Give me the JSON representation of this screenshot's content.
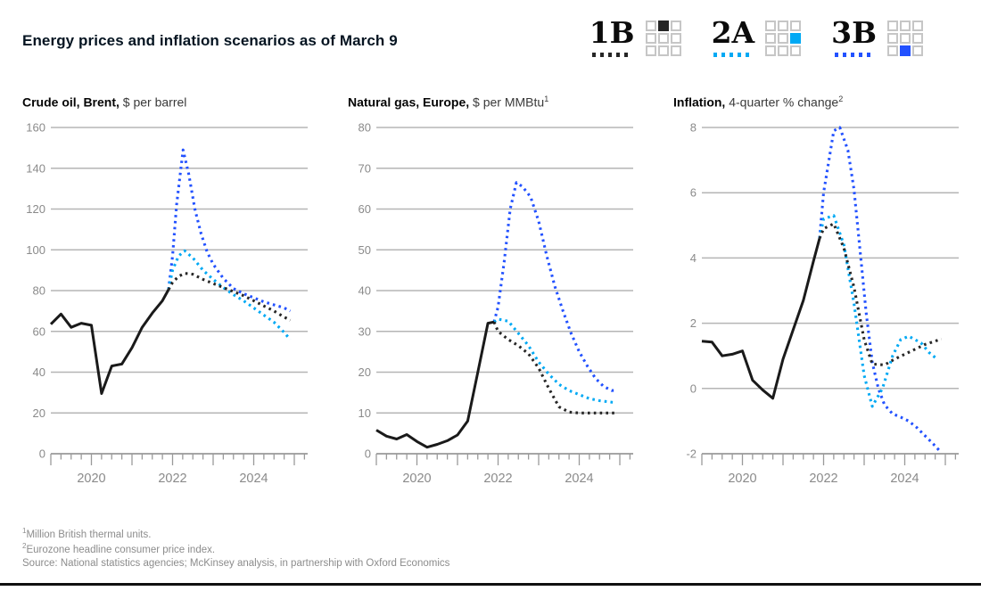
{
  "title": "Energy prices and inflation scenarios as of March 9",
  "legend": {
    "items": [
      {
        "label": "1B",
        "color": "#262626",
        "grid_cell_index": 1,
        "swatch": "dotted-line"
      },
      {
        "label": "2A",
        "color": "#00a9f4",
        "grid_cell_index": 5,
        "swatch": "dotted-line"
      },
      {
        "label": "3B",
        "color": "#2251ff",
        "grid_cell_index": 7,
        "swatch": "dotted-line"
      }
    ],
    "grid_border_color": "#c6c6c6"
  },
  "footnotes": [
    {
      "sup": "1",
      "text": "Million British thermal units."
    },
    {
      "sup": "2",
      "text": "Eurozone headline consumer price index."
    }
  ],
  "source": "Source: National statistics agencies; McKinsey analysis, in partnership with Oxford Economics",
  "chart_data": [
    {
      "type": "line",
      "title_bold": "Crude oil, Brent,",
      "title_rest": " $ per barrel",
      "title_sup": "",
      "ylim": [
        0,
        160
      ],
      "yticks": [
        160,
        140,
        120,
        100,
        80,
        60,
        40,
        20,
        0
      ],
      "x_range": [
        2019,
        2025
      ],
      "grid": true,
      "legend_position": "top-right-of-page",
      "x_year_labels": [
        {
          "label": "2020",
          "year": 2020
        },
        {
          "label": "2022",
          "year": 2022
        },
        {
          "label": "2024",
          "year": 2024
        }
      ],
      "series": [
        {
          "name": "3B",
          "style": "dotted",
          "color": "#2251ff",
          "x": [
            2021.9,
            2022.0,
            2022.1,
            2022.26,
            2022.4,
            2022.55,
            2022.7,
            2022.85,
            2023.0,
            2023.25,
            2023.5,
            2023.75,
            2024.0,
            2024.25,
            2024.5,
            2024.75,
            2024.9
          ],
          "y": [
            80.5,
            97,
            122,
            149,
            137,
            120,
            108,
            99,
            93,
            86,
            81,
            78.5,
            76.5,
            74.5,
            73,
            71.5,
            70
          ]
        },
        {
          "name": "2A",
          "style": "dotted",
          "color": "#00a9f4",
          "x": [
            2021.9,
            2022.0,
            2022.15,
            2022.3,
            2022.5,
            2022.75,
            2023.0,
            2023.25,
            2023.5,
            2023.75,
            2024.0,
            2024.25,
            2024.5,
            2024.75,
            2024.9
          ],
          "y": [
            80.5,
            90,
            97,
            99.5,
            96,
            90,
            85.5,
            81.5,
            78,
            75,
            71.5,
            68,
            64.5,
            59.5,
            56
          ]
        },
        {
          "name": "1B",
          "style": "dotted",
          "color": "#262626",
          "x": [
            2021.9,
            2022.0,
            2022.15,
            2022.3,
            2022.5,
            2022.75,
            2023.0,
            2023.25,
            2023.5,
            2023.75,
            2024.0,
            2024.25,
            2024.5,
            2024.75,
            2024.9
          ],
          "y": [
            80.5,
            84,
            87,
            88.5,
            88,
            85.5,
            83.5,
            81.5,
            79.5,
            77.5,
            75,
            72.5,
            70,
            67,
            65.5
          ]
        },
        {
          "name": "historical",
          "style": "solid",
          "color": "#1a1a1a",
          "x": [
            2019.0,
            2019.25,
            2019.5,
            2019.75,
            2020.0,
            2020.25,
            2020.5,
            2020.75,
            2021.0,
            2021.25,
            2021.5,
            2021.75,
            2021.9
          ],
          "y": [
            63.5,
            68.5,
            62,
            64,
            63,
            29.5,
            43,
            44,
            52,
            62,
            69,
            75,
            80.5
          ]
        }
      ]
    },
    {
      "type": "line",
      "title_bold": "Natural gas, Europe,",
      "title_rest": " $ per MMBtu",
      "title_sup": "1",
      "ylim": [
        0,
        80
      ],
      "yticks": [
        80,
        70,
        60,
        50,
        40,
        30,
        20,
        10,
        0
      ],
      "x_range": [
        2019,
        2025
      ],
      "grid": true,
      "x_year_labels": [
        {
          "label": "2020",
          "year": 2020
        },
        {
          "label": "2022",
          "year": 2022
        },
        {
          "label": "2024",
          "year": 2024
        }
      ],
      "series": [
        {
          "name": "3B",
          "style": "dotted",
          "color": "#2251ff",
          "x": [
            2021.9,
            2022.0,
            2022.15,
            2022.3,
            2022.45,
            2022.6,
            2022.8,
            2023.0,
            2023.2,
            2023.4,
            2023.6,
            2023.8,
            2024.0,
            2024.2,
            2024.4,
            2024.6,
            2024.8,
            2024.9
          ],
          "y": [
            32.3,
            36,
            47,
            60,
            66.5,
            65.5,
            63,
            57,
            48.5,
            41,
            35,
            29.5,
            25,
            21.5,
            18.5,
            16.5,
            15.5,
            15.5
          ]
        },
        {
          "name": "2A",
          "style": "dotted",
          "color": "#00a9f4",
          "x": [
            2021.9,
            2022.0,
            2022.25,
            2022.5,
            2022.75,
            2023.0,
            2023.25,
            2023.5,
            2023.75,
            2024.0,
            2024.25,
            2024.5,
            2024.75,
            2024.9
          ],
          "y": [
            32.3,
            33,
            32.5,
            29.5,
            26.5,
            22.5,
            19.5,
            17,
            15.5,
            14.5,
            13.5,
            13,
            12.7,
            12.5
          ]
        },
        {
          "name": "1B",
          "style": "dotted",
          "color": "#262626",
          "x": [
            2021.9,
            2022.0,
            2022.25,
            2022.5,
            2022.75,
            2023.0,
            2023.25,
            2023.5,
            2023.75,
            2024.0,
            2024.25,
            2024.5,
            2024.75,
            2024.9
          ],
          "y": [
            32.3,
            30,
            28,
            26.5,
            24.5,
            21,
            16,
            11.5,
            10.2,
            10,
            10,
            10,
            10,
            10
          ]
        },
        {
          "name": "historical",
          "style": "solid",
          "color": "#1a1a1a",
          "x": [
            2019.0,
            2019.25,
            2019.5,
            2019.75,
            2020.0,
            2020.25,
            2020.5,
            2020.75,
            2021.0,
            2021.25,
            2021.5,
            2021.75,
            2021.9
          ],
          "y": [
            5.8,
            4.3,
            3.6,
            4.7,
            3.0,
            1.6,
            2.3,
            3.2,
            4.6,
            8,
            20,
            32,
            32.3
          ]
        }
      ]
    },
    {
      "type": "line",
      "title_bold": "Inflation,",
      "title_rest": " 4-quarter % change",
      "title_sup": "2",
      "ylim": [
        -2,
        8
      ],
      "yticks": [
        8,
        6,
        4,
        2,
        0,
        -2
      ],
      "x_range": [
        2019,
        2025
      ],
      "grid": true,
      "x_year_labels": [
        {
          "label": "2020",
          "year": 2020
        },
        {
          "label": "2022",
          "year": 2022
        },
        {
          "label": "2024",
          "year": 2024
        }
      ],
      "series": [
        {
          "name": "3B",
          "style": "dotted",
          "color": "#2251ff",
          "x": [
            2021.9,
            2022.0,
            2022.25,
            2022.4,
            2022.6,
            2022.75,
            2022.9,
            2023.05,
            2023.2,
            2023.35,
            2023.5,
            2023.7,
            2023.9,
            2024.1,
            2024.3,
            2024.5,
            2024.7,
            2024.85
          ],
          "y": [
            4.6,
            6.0,
            7.9,
            8.0,
            7.3,
            6.1,
            4.2,
            2.3,
            0.8,
            0.0,
            -0.5,
            -0.78,
            -0.88,
            -1.0,
            -1.2,
            -1.45,
            -1.7,
            -1.9
          ]
        },
        {
          "name": "2A",
          "style": "dotted",
          "color": "#00a9f4",
          "x": [
            2021.9,
            2022.0,
            2022.25,
            2022.5,
            2022.75,
            2023.0,
            2023.2,
            2023.45,
            2023.7,
            2023.9,
            2024.1,
            2024.4,
            2024.6,
            2024.8
          ],
          "y": [
            4.6,
            5.2,
            5.3,
            4.4,
            2.6,
            0.4,
            -0.55,
            0.0,
            1.0,
            1.5,
            1.6,
            1.4,
            1.1,
            0.9
          ]
        },
        {
          "name": "1B",
          "style": "dotted",
          "color": "#262626",
          "x": [
            2021.9,
            2022.0,
            2022.25,
            2022.5,
            2022.75,
            2023.0,
            2023.2,
            2023.5,
            2023.75,
            2024.0,
            2024.25,
            2024.5,
            2024.75,
            2024.9
          ],
          "y": [
            4.6,
            4.9,
            5.05,
            4.3,
            3.1,
            1.5,
            0.75,
            0.72,
            0.9,
            1.05,
            1.2,
            1.35,
            1.45,
            1.52
          ]
        },
        {
          "name": "historical",
          "style": "solid",
          "color": "#1a1a1a",
          "x": [
            2019.0,
            2019.25,
            2019.5,
            2019.75,
            2020.0,
            2020.25,
            2020.5,
            2020.75,
            2021.0,
            2021.25,
            2021.5,
            2021.75,
            2021.9
          ],
          "y": [
            1.45,
            1.42,
            1.0,
            1.05,
            1.15,
            0.25,
            -0.05,
            -0.3,
            0.9,
            1.8,
            2.7,
            3.9,
            4.6
          ]
        }
      ]
    }
  ]
}
